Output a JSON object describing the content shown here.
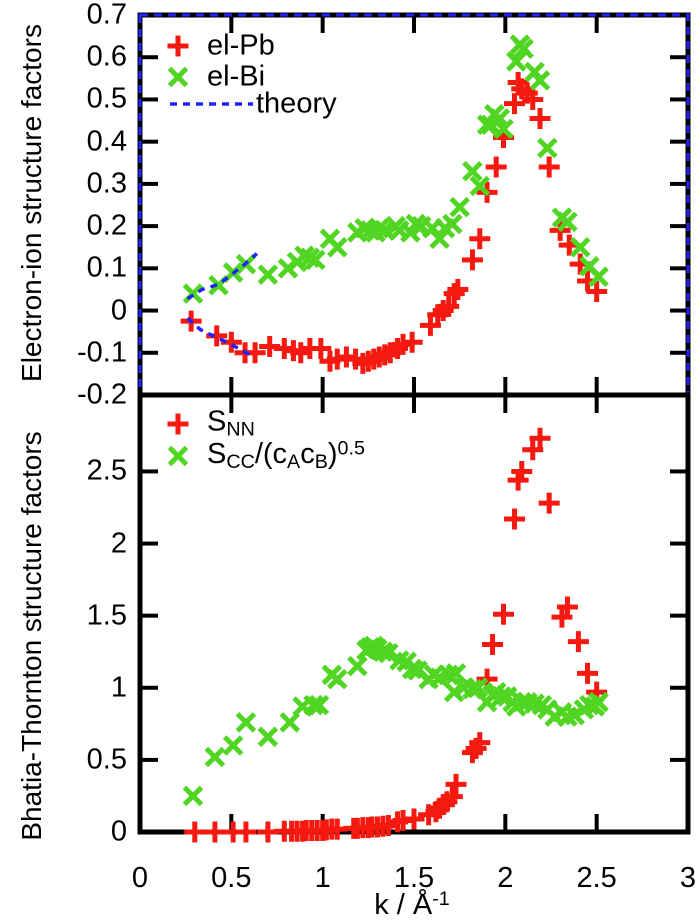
{
  "figure": {
    "x_axis": {
      "title_parts": [
        [
          "n",
          "k / Å"
        ],
        [
          "sup",
          "-1"
        ]
      ],
      "tick_values": [
        0,
        0.5,
        1,
        1.5,
        2,
        2.5,
        3
      ],
      "tick_labels": [
        "0",
        "0.5",
        "1",
        "1.5",
        "2",
        "2.5",
        "3"
      ]
    },
    "colors": {
      "el_pb": "#f5190f",
      "el_bi": "#50d622",
      "theory": "#2222fa",
      "frame": "#000000",
      "background": "#ffffff"
    }
  },
  "chart_data": [
    {
      "type": "scatter",
      "panel": "top",
      "ylabel": "Electron-ion structure factors",
      "xlim": [
        0,
        3
      ],
      "ylim": [
        -0.2,
        0.7
      ],
      "grid": false,
      "legend_position": "top-left-inside",
      "frame_dashed_overlay": true,
      "yticks": [
        {
          "v": 0.7,
          "t": "0.7"
        },
        {
          "v": 0.6,
          "t": "0.6"
        },
        {
          "v": 0.5,
          "t": "0.5"
        },
        {
          "v": 0.4,
          "t": "0.4"
        },
        {
          "v": 0.3,
          "t": "0.3"
        },
        {
          "v": 0.2,
          "t": "0.2"
        },
        {
          "v": 0.1,
          "t": "0.1"
        },
        {
          "v": 0,
          "t": "0"
        },
        {
          "v": -0.1,
          "t": "-0.1"
        },
        {
          "v": -0.2,
          "t": "-0.2"
        }
      ],
      "legend": [
        {
          "marker": "plus",
          "color": "#f5190f",
          "label_parts": [
            [
              "n",
              "el-Pb"
            ]
          ]
        },
        {
          "marker": "cross",
          "color": "#50d622",
          "label_parts": [
            [
              "n",
              "el-Bi"
            ]
          ]
        },
        {
          "marker": "dashline",
          "color": "#2222fa",
          "label_parts": [
            [
              "n",
              "theory"
            ]
          ]
        }
      ],
      "series": [
        {
          "name": "el-Pb",
          "marker": "plus",
          "color": "#f5190f",
          "points": [
            [
              0.28,
              -0.025
            ],
            [
              0.42,
              -0.06
            ],
            [
              0.5,
              -0.075
            ],
            [
              0.575,
              -0.1
            ],
            [
              0.63,
              -0.1
            ],
            [
              0.71,
              -0.085
            ],
            [
              0.79,
              -0.09
            ],
            [
              0.84,
              -0.095
            ],
            [
              0.88,
              -0.1
            ],
            [
              0.93,
              -0.09
            ],
            [
              0.99,
              -0.09
            ],
            [
              1.04,
              -0.12
            ],
            [
              1.08,
              -0.115
            ],
            [
              1.13,
              -0.11
            ],
            [
              1.18,
              -0.115
            ],
            [
              1.22,
              -0.125
            ],
            [
              1.25,
              -0.12
            ],
            [
              1.28,
              -0.115
            ],
            [
              1.31,
              -0.11
            ],
            [
              1.34,
              -0.105
            ],
            [
              1.37,
              -0.1
            ],
            [
              1.41,
              -0.09
            ],
            [
              1.44,
              -0.08
            ],
            [
              1.49,
              -0.075
            ],
            [
              1.59,
              -0.035
            ],
            [
              1.63,
              -0.01
            ],
            [
              1.66,
              0
            ],
            [
              1.69,
              0.01
            ],
            [
              1.72,
              0.04
            ],
            [
              1.74,
              0.05
            ],
            [
              1.82,
              0.12
            ],
            [
              1.86,
              0.17
            ],
            [
              1.9,
              0.28
            ],
            [
              1.95,
              0.34
            ],
            [
              1.99,
              0.41
            ],
            [
              2.05,
              0.49
            ],
            [
              2.07,
              0.54
            ],
            [
              2.09,
              0.525
            ],
            [
              2.12,
              0.515
            ],
            [
              2.15,
              0.5
            ],
            [
              2.19,
              0.455
            ],
            [
              2.24,
              0.34
            ],
            [
              2.3,
              0.19
            ],
            [
              2.35,
              0.155
            ],
            [
              2.41,
              0.11
            ],
            [
              2.45,
              0.07
            ],
            [
              2.5,
              0.045
            ]
          ]
        },
        {
          "name": "el-Bi",
          "marker": "cross",
          "color": "#50d622",
          "points": [
            [
              0.29,
              0.04
            ],
            [
              0.43,
              0.06
            ],
            [
              0.51,
              0.09
            ],
            [
              0.58,
              0.11
            ],
            [
              0.7,
              0.085
            ],
            [
              0.81,
              0.1
            ],
            [
              0.86,
              0.115
            ],
            [
              0.9,
              0.13
            ],
            [
              0.93,
              0.125
            ],
            [
              0.96,
              0.12
            ],
            [
              1.04,
              0.17
            ],
            [
              1.08,
              0.15
            ],
            [
              1.19,
              0.185
            ],
            [
              1.23,
              0.195
            ],
            [
              1.26,
              0.19
            ],
            [
              1.29,
              0.185
            ],
            [
              1.31,
              0.195
            ],
            [
              1.34,
              0.19
            ],
            [
              1.4,
              0.2
            ],
            [
              1.42,
              0.19
            ],
            [
              1.48,
              0.185
            ],
            [
              1.51,
              0.205
            ],
            [
              1.54,
              0.2
            ],
            [
              1.6,
              0.195
            ],
            [
              1.64,
              0.17
            ],
            [
              1.67,
              0.195
            ],
            [
              1.71,
              0.205
            ],
            [
              1.75,
              0.245
            ],
            [
              1.82,
              0.33
            ],
            [
              1.86,
              0.295
            ],
            [
              1.9,
              0.44
            ],
            [
              1.92,
              0.44
            ],
            [
              1.94,
              0.465
            ],
            [
              1.97,
              0.455
            ],
            [
              1.99,
              0.43
            ],
            [
              2.06,
              0.59
            ],
            [
              2.08,
              0.63
            ],
            [
              2.1,
              0.62
            ],
            [
              2.16,
              0.565
            ],
            [
              2.19,
              0.545
            ],
            [
              2.23,
              0.385
            ],
            [
              2.31,
              0.22
            ],
            [
              2.34,
              0.21
            ],
            [
              2.41,
              0.15
            ],
            [
              2.46,
              0.105
            ],
            [
              2.51,
              0.08
            ]
          ]
        },
        {
          "name": "theory",
          "marker": "line-dashed",
          "color": "#2222fa",
          "segments": [
            [
              [
                0.26,
                -0.018
              ],
              [
                0.33,
                -0.045
              ],
              [
                0.41,
                -0.062
              ],
              [
                0.49,
                -0.078
              ],
              [
                0.56,
                -0.095
              ],
              [
                0.62,
                -0.108
              ]
            ],
            [
              [
                0.26,
                0.028
              ],
              [
                0.34,
                0.05
              ],
              [
                0.43,
                0.062
              ],
              [
                0.51,
                0.088
              ],
              [
                0.58,
                0.112
              ],
              [
                0.64,
                0.135
              ]
            ]
          ]
        }
      ]
    },
    {
      "type": "scatter",
      "panel": "bottom",
      "ylabel": "Bhatia-Thornton structure factors",
      "xlim": [
        0,
        3
      ],
      "ylim": [
        0,
        3.03
      ],
      "grid": false,
      "legend_position": "top-left-inside",
      "frame_dashed_overlay": false,
      "yticks": [
        {
          "v": 2.5,
          "t": "2.5"
        },
        {
          "v": 2,
          "t": "2"
        },
        {
          "v": 1.5,
          "t": "1.5"
        },
        {
          "v": 1,
          "t": "1"
        },
        {
          "v": 0.5,
          "t": "0.5"
        },
        {
          "v": 0,
          "t": "0"
        }
      ],
      "legend": [
        {
          "marker": "plus",
          "color": "#f5190f",
          "label_parts": [
            [
              "n",
              "S"
            ],
            [
              "sub",
              "NN"
            ]
          ]
        },
        {
          "marker": "cross",
          "color": "#50d622",
          "label_parts": [
            [
              "n",
              "S"
            ],
            [
              "sub",
              "CC"
            ],
            [
              "n",
              "/(c"
            ],
            [
              "sub",
              "A"
            ],
            [
              "n",
              "c"
            ],
            [
              "sub",
              "B"
            ],
            [
              "n",
              ")"
            ],
            [
              "sup",
              "0.5"
            ]
          ]
        }
      ],
      "series": [
        {
          "name": "S_NN",
          "marker": "plus",
          "color": "#f5190f",
          "points": [
            [
              0.3,
              0
            ],
            [
              0.41,
              0
            ],
            [
              0.51,
              0
            ],
            [
              0.58,
              0
            ],
            [
              0.7,
              0
            ],
            [
              0.79,
              0.005
            ],
            [
              0.83,
              0.005
            ],
            [
              0.86,
              0.005
            ],
            [
              0.89,
              0.005
            ],
            [
              0.91,
              0.01
            ],
            [
              0.94,
              0.01
            ],
            [
              0.97,
              0.01
            ],
            [
              1,
              0.01
            ],
            [
              1.02,
              0.015
            ],
            [
              1.05,
              0.02
            ],
            [
              1.08,
              0.02
            ],
            [
              1.17,
              0.025
            ],
            [
              1.19,
              0.025
            ],
            [
              1.22,
              0.03
            ],
            [
              1.25,
              0.03
            ],
            [
              1.27,
              0.035
            ],
            [
              1.3,
              0.035
            ],
            [
              1.33,
              0.04
            ],
            [
              1.36,
              0.045
            ],
            [
              1.41,
              0.07
            ],
            [
              1.44,
              0.08
            ],
            [
              1.5,
              0.09
            ],
            [
              1.58,
              0.12
            ],
            [
              1.62,
              0.14
            ],
            [
              1.64,
              0.165
            ],
            [
              1.66,
              0.19
            ],
            [
              1.68,
              0.21
            ],
            [
              1.71,
              0.245
            ],
            [
              1.73,
              0.33
            ],
            [
              1.82,
              0.55
            ],
            [
              1.84,
              0.58
            ],
            [
              1.86,
              0.62
            ],
            [
              1.9,
              1.06
            ],
            [
              1.93,
              1.3
            ],
            [
              1.99,
              1.51
            ],
            [
              2.05,
              2.17
            ],
            [
              2.07,
              2.44
            ],
            [
              2.09,
              2.5
            ],
            [
              2.15,
              2.65
            ],
            [
              2.19,
              2.73
            ],
            [
              2.24,
              2.28
            ],
            [
              2.31,
              1.49
            ],
            [
              2.34,
              1.56
            ],
            [
              2.4,
              1.32
            ],
            [
              2.45,
              1.1
            ],
            [
              2.5,
              0.97
            ]
          ]
        },
        {
          "name": "S_CC/(cA cB)^0.5",
          "marker": "cross",
          "color": "#50d622",
          "points": [
            [
              0.29,
              0.25
            ],
            [
              0.41,
              0.52
            ],
            [
              0.51,
              0.6
            ],
            [
              0.58,
              0.76
            ],
            [
              0.7,
              0.66
            ],
            [
              0.82,
              0.76
            ],
            [
              0.89,
              0.87
            ],
            [
              0.95,
              0.88
            ],
            [
              0.98,
              0.88
            ],
            [
              1.05,
              1.09
            ],
            [
              1.08,
              1.06
            ],
            [
              1.19,
              1.15
            ],
            [
              1.24,
              1.26
            ],
            [
              1.26,
              1.28
            ],
            [
              1.28,
              1.29
            ],
            [
              1.3,
              1.27
            ],
            [
              1.33,
              1.25
            ],
            [
              1.36,
              1.24
            ],
            [
              1.42,
              1.19
            ],
            [
              1.46,
              1.18
            ],
            [
              1.49,
              1.13
            ],
            [
              1.52,
              1.12
            ],
            [
              1.58,
              1.06
            ],
            [
              1.61,
              1.09
            ],
            [
              1.64,
              1.07
            ],
            [
              1.69,
              1.09
            ],
            [
              1.72,
              0.97
            ],
            [
              1.73,
              1.1
            ],
            [
              1.77,
              1
            ],
            [
              1.82,
              0.99
            ],
            [
              1.85,
              1
            ],
            [
              1.9,
              0.9
            ],
            [
              1.93,
              0.95
            ],
            [
              1.95,
              0.97
            ],
            [
              1.98,
              0.94
            ],
            [
              2.01,
              0.94
            ],
            [
              2.04,
              0.9
            ],
            [
              2.06,
              0.87
            ],
            [
              2.09,
              0.9
            ],
            [
              2.12,
              0.9
            ],
            [
              2.16,
              0.89
            ],
            [
              2.2,
              0.88
            ],
            [
              2.23,
              0.85
            ],
            [
              2.27,
              0.8
            ],
            [
              2.31,
              0.83
            ],
            [
              2.34,
              0.8
            ],
            [
              2.38,
              0.81
            ],
            [
              2.43,
              0.85
            ],
            [
              2.46,
              0.88
            ],
            [
              2.49,
              0.87
            ],
            [
              2.51,
              0.9
            ]
          ]
        }
      ]
    }
  ]
}
